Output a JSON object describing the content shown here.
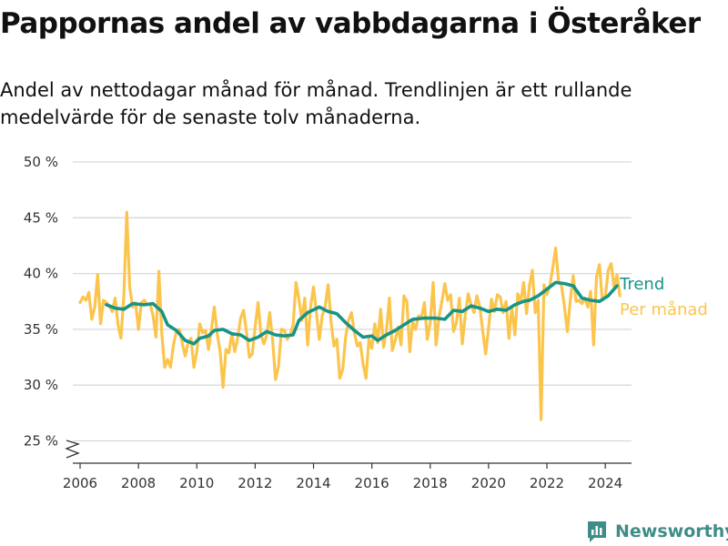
{
  "header": {
    "title": "Pappornas andel av vabbdagarna i Österåker",
    "subtitle": "Andel av nettodagar månad för månad. Trendlinjen är ett rullande medelvärde för de senaste tolv månaderna."
  },
  "brand": {
    "name": "Newsworthy",
    "icon": "bar-chart-logo-icon"
  },
  "colors": {
    "monthly": "#fbc54d",
    "trend": "#179488",
    "grid": "#d9d9d9",
    "axis": "#333333"
  },
  "chart_data": {
    "type": "line",
    "x_unit": "year",
    "xlim": [
      2005.5,
      2024.9
    ],
    "ylim": [
      23,
      50
    ],
    "y_ticks": [
      25,
      30,
      35,
      40,
      45,
      50
    ],
    "y_tick_labels": [
      "25 %",
      "30 %",
      "35 %",
      "40 %",
      "45 %",
      "50 %"
    ],
    "x_ticks": [
      2006,
      2008,
      2010,
      2012,
      2014,
      2016,
      2018,
      2020,
      2022,
      2024
    ],
    "x_tick_labels": [
      "2006",
      "2008",
      "2010",
      "2012",
      "2014",
      "2016",
      "2018",
      "2020",
      "2022",
      "2024"
    ],
    "y_axis_break": true,
    "grid": true,
    "legend_placement": "right",
    "series": [
      {
        "name": "Trend",
        "color": "#179488",
        "points": [
          [
            2006.9,
            37.2
          ],
          [
            2007.2,
            36.9
          ],
          [
            2007.5,
            36.8
          ],
          [
            2007.8,
            37.3
          ],
          [
            2008.2,
            37.2
          ],
          [
            2008.5,
            37.3
          ],
          [
            2008.8,
            36.6
          ],
          [
            2009.0,
            35.4
          ],
          [
            2009.3,
            34.9
          ],
          [
            2009.6,
            34.0
          ],
          [
            2009.9,
            33.7
          ],
          [
            2010.1,
            34.2
          ],
          [
            2010.4,
            34.4
          ],
          [
            2010.6,
            34.9
          ],
          [
            2010.9,
            35.0
          ],
          [
            2011.2,
            34.6
          ],
          [
            2011.5,
            34.5
          ],
          [
            2011.8,
            34.0
          ],
          [
            2012.1,
            34.3
          ],
          [
            2012.4,
            34.8
          ],
          [
            2012.7,
            34.5
          ],
          [
            2013.0,
            34.4
          ],
          [
            2013.3,
            34.5
          ],
          [
            2013.5,
            35.8
          ],
          [
            2013.8,
            36.5
          ],
          [
            2014.2,
            37.0
          ],
          [
            2014.5,
            36.6
          ],
          [
            2014.8,
            36.4
          ],
          [
            2015.1,
            35.6
          ],
          [
            2015.4,
            34.9
          ],
          [
            2015.7,
            34.3
          ],
          [
            2016.0,
            34.4
          ],
          [
            2016.2,
            34.0
          ],
          [
            2016.5,
            34.5
          ],
          [
            2016.8,
            34.9
          ],
          [
            2017.1,
            35.4
          ],
          [
            2017.4,
            35.9
          ],
          [
            2017.8,
            36.0
          ],
          [
            2018.2,
            36.0
          ],
          [
            2018.5,
            35.9
          ],
          [
            2018.8,
            36.7
          ],
          [
            2019.1,
            36.6
          ],
          [
            2019.4,
            37.1
          ],
          [
            2019.7,
            36.9
          ],
          [
            2020.0,
            36.6
          ],
          [
            2020.3,
            36.8
          ],
          [
            2020.6,
            36.7
          ],
          [
            2020.9,
            37.2
          ],
          [
            2021.2,
            37.5
          ],
          [
            2021.4,
            37.6
          ],
          [
            2021.7,
            38.0
          ],
          [
            2022.0,
            38.6
          ],
          [
            2022.3,
            39.2
          ],
          [
            2022.6,
            39.1
          ],
          [
            2022.9,
            38.9
          ],
          [
            2023.2,
            37.8
          ],
          [
            2023.5,
            37.6
          ],
          [
            2023.8,
            37.5
          ],
          [
            2024.1,
            38.0
          ],
          [
            2024.4,
            38.9
          ]
        ]
      },
      {
        "name": "Per månad",
        "color": "#fbc54d",
        "points": [
          [
            2006.0,
            37.4
          ],
          [
            2006.1,
            37.9
          ],
          [
            2006.2,
            37.6
          ],
          [
            2006.3,
            38.3
          ],
          [
            2006.4,
            35.9
          ],
          [
            2006.5,
            37.0
          ],
          [
            2006.6,
            39.9
          ],
          [
            2006.7,
            35.5
          ],
          [
            2006.8,
            37.6
          ],
          [
            2006.9,
            37.4
          ],
          [
            2007.0,
            37.1
          ],
          [
            2007.1,
            36.6
          ],
          [
            2007.2,
            37.8
          ],
          [
            2007.3,
            35.4
          ],
          [
            2007.4,
            34.2
          ],
          [
            2007.5,
            38.0
          ],
          [
            2007.6,
            45.5
          ],
          [
            2007.7,
            38.8
          ],
          [
            2007.8,
            37.0
          ],
          [
            2007.9,
            37.4
          ],
          [
            2008.0,
            35.0
          ],
          [
            2008.1,
            37.4
          ],
          [
            2008.2,
            37.6
          ],
          [
            2008.3,
            37.2
          ],
          [
            2008.4,
            37.3
          ],
          [
            2008.5,
            36.2
          ],
          [
            2008.6,
            34.3
          ],
          [
            2008.7,
            40.2
          ],
          [
            2008.8,
            34.6
          ],
          [
            2008.9,
            31.6
          ],
          [
            2009.0,
            32.3
          ],
          [
            2009.1,
            31.6
          ],
          [
            2009.2,
            33.6
          ],
          [
            2009.3,
            34.8
          ],
          [
            2009.4,
            35.0
          ],
          [
            2009.5,
            33.8
          ],
          [
            2009.6,
            32.6
          ],
          [
            2009.7,
            33.8
          ],
          [
            2009.8,
            34.2
          ],
          [
            2009.9,
            31.6
          ],
          [
            2010.0,
            33.0
          ],
          [
            2010.1,
            35.5
          ],
          [
            2010.2,
            34.7
          ],
          [
            2010.3,
            34.9
          ],
          [
            2010.4,
            33.2
          ],
          [
            2010.5,
            35.0
          ],
          [
            2010.6,
            37.0
          ],
          [
            2010.7,
            34.6
          ],
          [
            2010.8,
            33.0
          ],
          [
            2010.9,
            29.8
          ],
          [
            2011.0,
            33.2
          ],
          [
            2011.1,
            32.9
          ],
          [
            2011.2,
            34.6
          ],
          [
            2011.3,
            33.0
          ],
          [
            2011.4,
            34.2
          ],
          [
            2011.5,
            36.0
          ],
          [
            2011.6,
            36.7
          ],
          [
            2011.7,
            34.8
          ],
          [
            2011.8,
            32.5
          ],
          [
            2011.9,
            32.8
          ],
          [
            2012.0,
            35.2
          ],
          [
            2012.1,
            37.4
          ],
          [
            2012.2,
            34.5
          ],
          [
            2012.3,
            33.7
          ],
          [
            2012.4,
            34.5
          ],
          [
            2012.5,
            36.5
          ],
          [
            2012.6,
            34.0
          ],
          [
            2012.7,
            30.5
          ],
          [
            2012.8,
            31.7
          ],
          [
            2012.9,
            35.0
          ],
          [
            2013.0,
            34.9
          ],
          [
            2013.1,
            34.1
          ],
          [
            2013.2,
            34.5
          ],
          [
            2013.3,
            35.4
          ],
          [
            2013.4,
            39.2
          ],
          [
            2013.5,
            37.7
          ],
          [
            2013.6,
            35.8
          ],
          [
            2013.7,
            37.8
          ],
          [
            2013.8,
            33.6
          ],
          [
            2013.9,
            37.0
          ],
          [
            2014.0,
            38.8
          ],
          [
            2014.1,
            36.5
          ],
          [
            2014.2,
            34.1
          ],
          [
            2014.3,
            36.2
          ],
          [
            2014.4,
            37.1
          ],
          [
            2014.5,
            39.0
          ],
          [
            2014.6,
            35.7
          ],
          [
            2014.7,
            33.5
          ],
          [
            2014.8,
            34.1
          ],
          [
            2014.9,
            30.6
          ],
          [
            2015.0,
            31.4
          ],
          [
            2015.1,
            34.3
          ],
          [
            2015.2,
            35.8
          ],
          [
            2015.3,
            36.5
          ],
          [
            2015.4,
            34.7
          ],
          [
            2015.5,
            33.5
          ],
          [
            2015.6,
            33.8
          ],
          [
            2015.7,
            31.9
          ],
          [
            2015.8,
            30.6
          ],
          [
            2015.9,
            34.1
          ],
          [
            2016.0,
            33.3
          ],
          [
            2016.1,
            35.5
          ],
          [
            2016.2,
            33.8
          ],
          [
            2016.3,
            36.8
          ],
          [
            2016.4,
            33.4
          ],
          [
            2016.5,
            34.9
          ],
          [
            2016.6,
            37.8
          ],
          [
            2016.7,
            33.1
          ],
          [
            2016.8,
            34.0
          ],
          [
            2016.9,
            35.2
          ],
          [
            2017.0,
            33.6
          ],
          [
            2017.1,
            38.0
          ],
          [
            2017.2,
            37.5
          ],
          [
            2017.3,
            33.0
          ],
          [
            2017.4,
            35.7
          ],
          [
            2017.5,
            35.0
          ],
          [
            2017.6,
            36.2
          ],
          [
            2017.7,
            36.1
          ],
          [
            2017.8,
            37.4
          ],
          [
            2017.9,
            34.1
          ],
          [
            2018.0,
            35.6
          ],
          [
            2018.1,
            39.2
          ],
          [
            2018.2,
            33.6
          ],
          [
            2018.3,
            36.1
          ],
          [
            2018.4,
            37.5
          ],
          [
            2018.5,
            39.1
          ],
          [
            2018.6,
            37.6
          ],
          [
            2018.7,
            38.1
          ],
          [
            2018.8,
            34.8
          ],
          [
            2018.9,
            35.6
          ],
          [
            2019.0,
            37.8
          ],
          [
            2019.1,
            33.7
          ],
          [
            2019.2,
            36.2
          ],
          [
            2019.3,
            38.2
          ],
          [
            2019.4,
            37.2
          ],
          [
            2019.5,
            36.5
          ],
          [
            2019.6,
            38.0
          ],
          [
            2019.7,
            37.0
          ],
          [
            2019.8,
            34.8
          ],
          [
            2019.9,
            32.8
          ],
          [
            2020.0,
            35.1
          ],
          [
            2020.1,
            37.7
          ],
          [
            2020.2,
            36.6
          ],
          [
            2020.3,
            38.1
          ],
          [
            2020.4,
            37.9
          ],
          [
            2020.5,
            36.5
          ],
          [
            2020.6,
            37.5
          ],
          [
            2020.7,
            34.2
          ],
          [
            2020.8,
            37.0
          ],
          [
            2020.9,
            34.5
          ],
          [
            2021.0,
            38.2
          ],
          [
            2021.1,
            37.4
          ],
          [
            2021.2,
            39.2
          ],
          [
            2021.3,
            36.4
          ],
          [
            2021.4,
            38.9
          ],
          [
            2021.5,
            40.3
          ],
          [
            2021.6,
            36.5
          ],
          [
            2021.7,
            37.6
          ],
          [
            2021.8,
            26.9
          ],
          [
            2021.9,
            39.0
          ],
          [
            2022.0,
            38.1
          ],
          [
            2022.1,
            38.9
          ],
          [
            2022.2,
            40.5
          ],
          [
            2022.3,
            42.3
          ],
          [
            2022.4,
            39.3
          ],
          [
            2022.5,
            38.9
          ],
          [
            2022.6,
            37.0
          ],
          [
            2022.7,
            34.8
          ],
          [
            2022.8,
            37.6
          ],
          [
            2022.9,
            39.8
          ],
          [
            2023.0,
            37.5
          ],
          [
            2023.1,
            37.6
          ],
          [
            2023.2,
            37.3
          ],
          [
            2023.3,
            37.8
          ],
          [
            2023.4,
            37.0
          ],
          [
            2023.5,
            38.4
          ],
          [
            2023.6,
            33.6
          ],
          [
            2023.7,
            39.7
          ],
          [
            2023.8,
            40.8
          ],
          [
            2023.9,
            37.6
          ],
          [
            2024.0,
            37.9
          ],
          [
            2024.1,
            40.3
          ],
          [
            2024.2,
            40.9
          ],
          [
            2024.3,
            38.8
          ],
          [
            2024.4,
            39.9
          ],
          [
            2024.5,
            38.0
          ]
        ]
      }
    ]
  }
}
